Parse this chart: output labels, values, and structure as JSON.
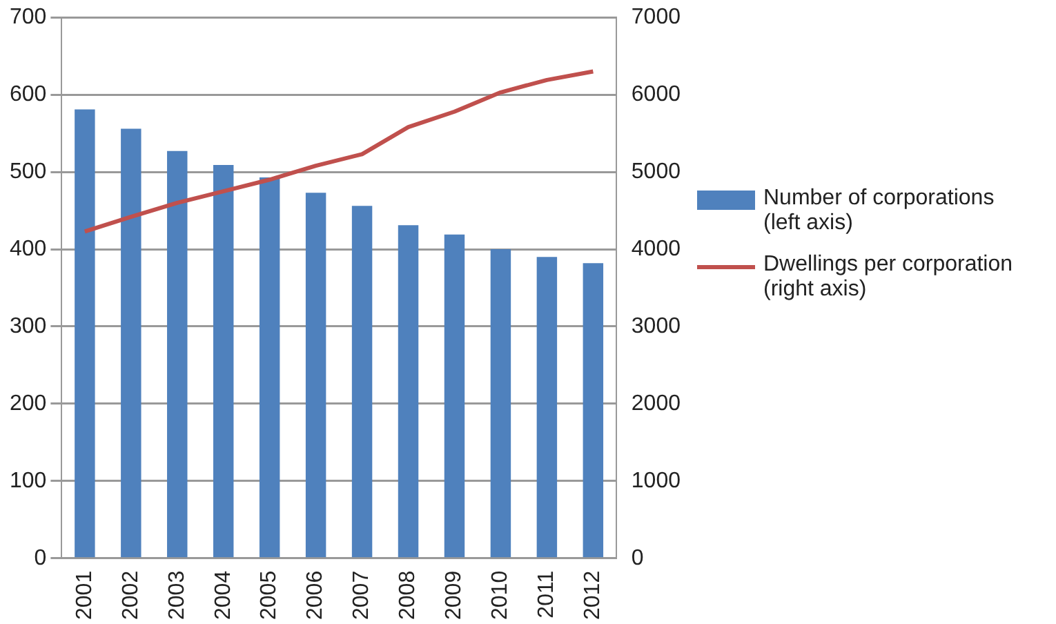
{
  "chart_data": {
    "type": "bar",
    "categories": [
      "2001",
      "2002",
      "2003",
      "2004",
      "2005",
      "2006",
      "2007",
      "2008",
      "2009",
      "2010",
      "2011",
      "2012"
    ],
    "series": [
      {
        "name": "Number of corporations (left axis)",
        "color": "#4f81bd",
        "values": [
          581,
          556,
          527,
          509,
          493,
          473,
          456,
          431,
          419,
          400,
          390,
          382
        ]
      },
      {
        "name": "Dwellings per corporation (right axis)",
        "type": "line",
        "axis": "y2",
        "color": "#c0504d",
        "values": [
          4230,
          4420,
          4600,
          4750,
          4900,
          5080,
          5230,
          5580,
          5780,
          6030,
          6190,
          6300
        ]
      }
    ],
    "ylim": [
      0,
      700
    ],
    "yticks": [
      0,
      100,
      200,
      300,
      400,
      500,
      600,
      700
    ],
    "y2lim": [
      0,
      7000
    ],
    "y2ticks": [
      0,
      1000,
      2000,
      3000,
      4000,
      5000,
      6000,
      7000
    ],
    "grid": "y",
    "legend": "right",
    "marker": "none"
  }
}
